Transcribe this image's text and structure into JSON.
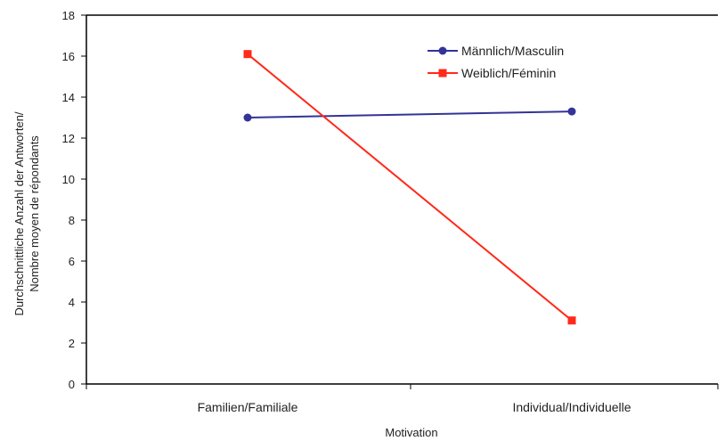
{
  "chart_data": {
    "type": "line",
    "categories": [
      "Familien/Familiale",
      "Individual/Individuelle"
    ],
    "series": [
      {
        "name": "Männlich/Masculin",
        "values": [
          13.0,
          13.3
        ],
        "color": "#333399",
        "marker": "circle"
      },
      {
        "name": "Weiblich/Féminin",
        "values": [
          16.1,
          3.1
        ],
        "color": "#ff2a1a",
        "marker": "square"
      }
    ],
    "xlabel": "Motivation",
    "ylabel_lines": [
      "Durchschnittliche Anzahl der Antworten/",
      "Nombre moyen de répondants"
    ],
    "ylim": [
      0,
      18
    ],
    "yticks": [
      0,
      2,
      4,
      6,
      8,
      10,
      12,
      14,
      16,
      18
    ],
    "grid": false,
    "legend_position": "top-right"
  }
}
